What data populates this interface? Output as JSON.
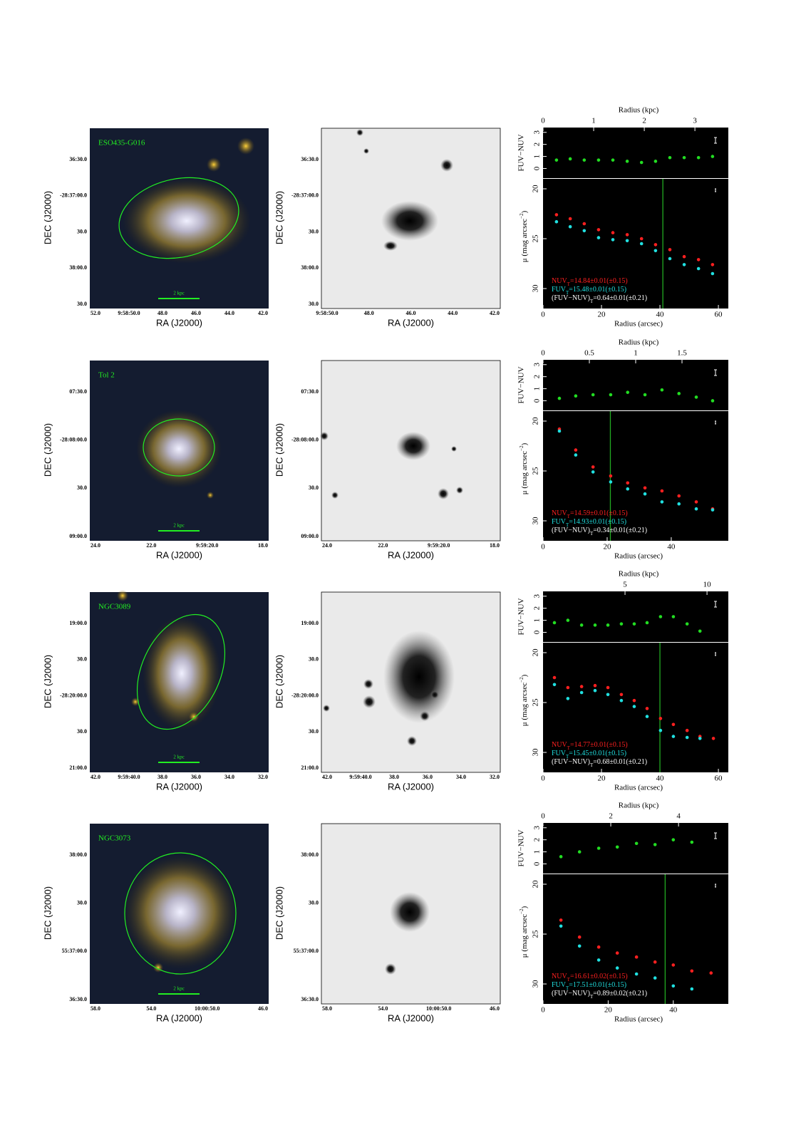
{
  "axis_labels": {
    "ra": "RA (J2000)",
    "dec": "DEC (J2000)",
    "radius_kpc": "Radius (kpc)",
    "radius_arcsec": "Radius (arcsec)",
    "color": "FUV−NUV",
    "mu": "μ (mag arcsec",
    "mu_exp": "−2",
    "mu_end": ")"
  },
  "rows": [
    {
      "name": "ESO435-G016",
      "scale_bar": "2 kpc",
      "color_image": {
        "ra_ticks": [
          "52.0",
          "9:58:50.0",
          "48.0",
          "46.0",
          "44.0",
          "42.0"
        ],
        "dec_ticks": [
          "36:30.0",
          "-28:37:00.0",
          "30.0",
          "38:00.0",
          "30.0"
        ]
      },
      "gray_image": {
        "ra_ticks": [
          "9:58:50.0",
          "48.0",
          "46.0",
          "44.0",
          "42.0"
        ],
        "dec_ticks": [
          "36:30.0",
          "-28:37:00.0",
          "30.0",
          "38:00.0",
          "30.0"
        ]
      },
      "profile": {
        "xlim": [
          0,
          63.4
        ],
        "xticks": [
          0,
          20,
          40,
          60
        ],
        "kpc_xlim": [
          0,
          3.66
        ],
        "kpc_xticks": [
          0,
          1,
          2,
          3
        ],
        "color_ylim": [
          -0.8,
          3.4
        ],
        "color_yticks": [
          0,
          1,
          2,
          3
        ],
        "mu_ylim": [
          32,
          19
        ],
        "mu_yticks": [
          20,
          25,
          30
        ],
        "radius": [
          4.6,
          9.3,
          14.1,
          19,
          23.9,
          28.8,
          33.7,
          38.5,
          43.4,
          48.3,
          53.2,
          58
        ],
        "fuv_nuv": {
          "color": "#22dd22",
          "values": [
            0.7,
            0.8,
            0.7,
            0.7,
            0.7,
            0.6,
            0.5,
            0.6,
            0.9,
            0.9,
            0.9,
            1.0
          ]
        },
        "nuv": {
          "color": "#ff2020",
          "values": [
            22.6,
            23.0,
            23.5,
            24.1,
            24.4,
            24.6,
            25.0,
            25.6,
            26.1,
            26.8,
            27.1,
            27.6
          ]
        },
        "fuv": {
          "color": "#20e0e0",
          "values": [
            23.3,
            23.8,
            24.2,
            24.9,
            25.1,
            25.2,
            25.5,
            26.2,
            27.0,
            27.6,
            28.0,
            28.5
          ]
        },
        "aperture_radius": 41,
        "totals": [
          {
            "band": "NUV",
            "sub": "T",
            "text": "=14.84±0.01(±0.15)",
            "color": "#ff2020"
          },
          {
            "band": "FUV",
            "sub": "T",
            "text": "=15.48±0.01(±0.15)",
            "color": "#20e0e0"
          },
          {
            "band": "(FUV−NUV)",
            "sub": "T",
            "text": "=0.64±0.01(±0.21)",
            "color": "#ffffff"
          }
        ]
      }
    },
    {
      "name": "Tol 2",
      "scale_bar": "2 kpc",
      "color_image": {
        "ra_ticks": [
          "24.0",
          "22.0",
          "9:59:20.0",
          "18.0"
        ],
        "dec_ticks": [
          "07:30.0",
          "-28:08:00.0",
          "30.0",
          "09:00.0"
        ]
      },
      "gray_image": {
        "ra_ticks": [
          "24.0",
          "22.0",
          "9:59:20.0",
          "18.0"
        ],
        "dec_ticks": [
          "07:30.0",
          "-28:08:00.0",
          "30.0",
          "09:00.0"
        ]
      },
      "profile": {
        "xlim": [
          0,
          57.8
        ],
        "xticks": [
          0,
          20,
          40
        ],
        "kpc_xlim": [
          0,
          2.0
        ],
        "kpc_xticks": [
          0,
          0.5,
          1,
          1.5
        ],
        "color_ylim": [
          -0.8,
          3.4
        ],
        "color_yticks": [
          0,
          1,
          2,
          3
        ],
        "mu_ylim": [
          32,
          19
        ],
        "mu_yticks": [
          20,
          25,
          30
        ],
        "radius": [
          5.1,
          10.2,
          15.6,
          21.1,
          26.4,
          31.8,
          37.1,
          42.4,
          47.8,
          52.9
        ],
        "fuv_nuv": {
          "color": "#22dd22",
          "values": [
            0.2,
            0.4,
            0.5,
            0.5,
            0.7,
            0.5,
            0.9,
            0.6,
            0.3,
            0.0
          ]
        },
        "nuv": {
          "color": "#ff2020",
          "values": [
            20.8,
            22.9,
            24.6,
            25.5,
            26.2,
            26.7,
            27.0,
            27.5,
            28.1,
            28.8
          ]
        },
        "fuv": {
          "color": "#20e0e0",
          "values": [
            21.0,
            23.4,
            25.1,
            26.1,
            26.8,
            27.3,
            28.1,
            28.3,
            28.8,
            28.9
          ]
        },
        "aperture_radius": 21,
        "totals": [
          {
            "band": "NUV",
            "sub": "T",
            "text": "=14.59±0.01(±0.15)",
            "color": "#ff2020"
          },
          {
            "band": "FUV",
            "sub": "T",
            "text": "=14.93±0.01(±0.15)",
            "color": "#20e0e0"
          },
          {
            "band": "(FUV−NUV)",
            "sub": "T",
            "text": "=0.34±0.01(±0.21)",
            "color": "#ffffff"
          }
        ]
      }
    },
    {
      "name": "NGC3089",
      "scale_bar": "2 kpc",
      "color_image": {
        "ra_ticks": [
          "42.0",
          "9:59:40.0",
          "38.0",
          "36.0",
          "34.0",
          "32.0"
        ],
        "dec_ticks": [
          "19:00.0",
          "30.0",
          "-28:20:00.0",
          "30.0",
          "21:00.0"
        ]
      },
      "gray_image": {
        "ra_ticks": [
          "42.0",
          "9:59:40.0",
          "38.0",
          "36.0",
          "34.0",
          "32.0"
        ],
        "dec_ticks": [
          "19:00.0",
          "30.0",
          "-28:20:00.0",
          "30.0",
          "21:00.0"
        ]
      },
      "profile": {
        "xlim": [
          0,
          63.4
        ],
        "xticks": [
          0,
          20,
          40,
          60
        ],
        "kpc_xlim": [
          0,
          11.3
        ],
        "kpc_xticks": [
          5,
          10
        ],
        "color_ylim": [
          -0.8,
          3.4
        ],
        "color_yticks": [
          0,
          1,
          2,
          3
        ],
        "mu_ylim": [
          32,
          19
        ],
        "mu_yticks": [
          20,
          25,
          30
        ],
        "radius": [
          3.9,
          8.5,
          13.2,
          17.8,
          22.2,
          26.8,
          31.2,
          35.6,
          40.2,
          44.6,
          49.3,
          53.7,
          58.3
        ],
        "fuv_nuv": {
          "color": "#22dd22",
          "values": [
            0.8,
            1.0,
            0.6,
            0.6,
            0.6,
            0.7,
            0.7,
            0.8,
            1.3,
            1.3,
            0.7,
            0.1,
            null
          ]
        },
        "nuv": {
          "color": "#ff2020",
          "values": [
            22.5,
            23.5,
            23.4,
            23.3,
            23.5,
            24.2,
            24.8,
            25.6,
            26.6,
            27.2,
            27.8,
            28.4,
            28.6
          ]
        },
        "fuv": {
          "color": "#20e0e0",
          "values": [
            23.2,
            24.6,
            24.0,
            23.8,
            24.2,
            24.8,
            25.4,
            26.4,
            27.8,
            28.4,
            28.5,
            28.6,
            null
          ]
        },
        "aperture_radius": 40,
        "totals": [
          {
            "band": "NUV",
            "sub": "T",
            "text": "=14.77±0.01(±0.15)",
            "color": "#ff2020"
          },
          {
            "band": "FUV",
            "sub": "T",
            "text": "=15.45±0.01(±0.15)",
            "color": "#20e0e0"
          },
          {
            "band": "(FUV−NUV)",
            "sub": "T",
            "text": "=0.68±0.01(±0.21)",
            "color": "#ffffff"
          }
        ]
      }
    },
    {
      "name": "NGC3073",
      "scale_bar": "2 kpc",
      "color_image": {
        "ra_ticks": [
          "58.0",
          "54.0",
          "10:00:50.0",
          "46.0"
        ],
        "dec_ticks": [
          "38:00.0",
          "30.0",
          "55:37:00.0",
          "36:30.0"
        ]
      },
      "gray_image": {
        "ra_ticks": [
          "58.0",
          "54.0",
          "10:00:50.0",
          "46.0"
        ],
        "dec_ticks": [
          "38:00.0",
          "30.0",
          "55:37:00.0",
          "36:30.0"
        ]
      },
      "profile": {
        "xlim": [
          0,
          56.9
        ],
        "xticks": [
          0,
          20,
          40
        ],
        "kpc_xlim": [
          0,
          5.47
        ],
        "kpc_xticks": [
          0,
          2,
          4
        ],
        "color_ylim": [
          -0.8,
          3.4
        ],
        "color_yticks": [
          0,
          1,
          2,
          3
        ],
        "mu_ylim": [
          32,
          19
        ],
        "mu_yticks": [
          20,
          25,
          30
        ],
        "radius": [
          5.5,
          11.2,
          17.1,
          22.8,
          28.7,
          34.4,
          40.0,
          45.7,
          51.6
        ],
        "fuv_nuv": {
          "color": "#22dd22",
          "values": [
            0.6,
            1.0,
            1.3,
            1.4,
            1.7,
            1.6,
            2.0,
            1.8,
            null
          ]
        },
        "nuv": {
          "color": "#ff2020",
          "values": [
            23.6,
            25.3,
            26.3,
            26.9,
            27.3,
            27.8,
            28.1,
            28.7,
            28.9
          ]
        },
        "fuv": {
          "color": "#20e0e0",
          "values": [
            24.2,
            26.2,
            27.6,
            28.4,
            29.0,
            29.4,
            30.2,
            30.5,
            null
          ]
        },
        "aperture_radius": 37.5,
        "totals": [
          {
            "band": "NUV",
            "sub": "T",
            "text": "=16.61±0.02(±0.15)",
            "color": "#ff2020"
          },
          {
            "band": "FUV",
            "sub": "T",
            "text": "=17.51±0.01(±0.15)",
            "color": "#20e0e0"
          },
          {
            "band": "(FUV−NUV)",
            "sub": "T",
            "text": "=0.89±0.02(±0.21)",
            "color": "#ffffff"
          }
        ]
      }
    }
  ]
}
